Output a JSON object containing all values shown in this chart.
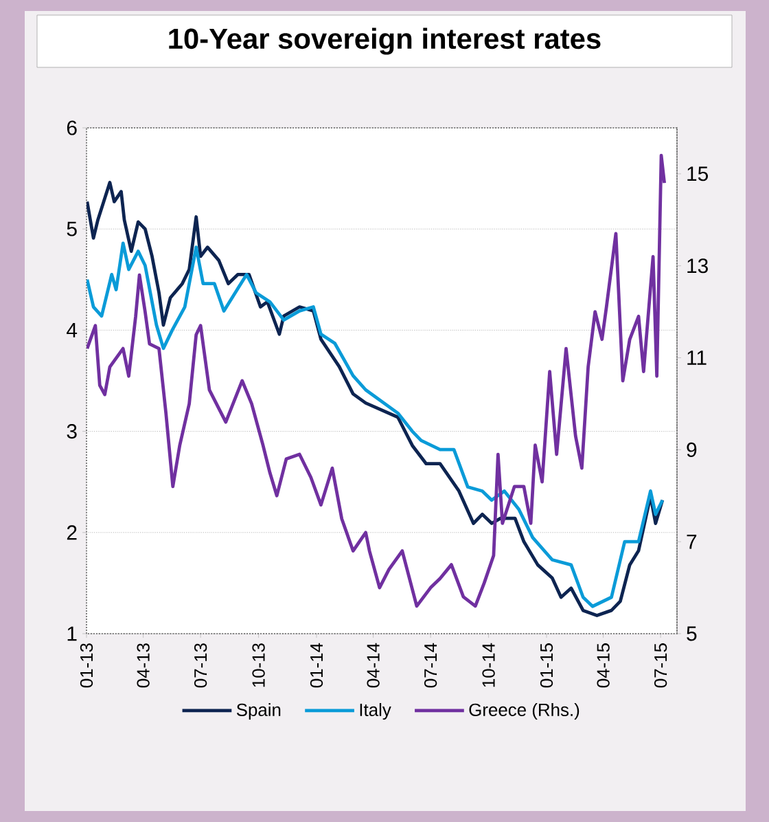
{
  "chart_data": {
    "type": "line",
    "title": "10-Year sovereign interest rates",
    "xlim": [
      "2013-01-01",
      "2015-07-27"
    ],
    "xticks": [
      {
        "value": "2013-01-01",
        "label": "01-13"
      },
      {
        "value": "2013-04-01",
        "label": "04-13"
      },
      {
        "value": "2013-07-01",
        "label": "07-13"
      },
      {
        "value": "2013-10-01",
        "label": "10-13"
      },
      {
        "value": "2014-01-01",
        "label": "01-14"
      },
      {
        "value": "2014-04-01",
        "label": "04-14"
      },
      {
        "value": "2014-07-01",
        "label": "07-14"
      },
      {
        "value": "2014-10-01",
        "label": "10-14"
      },
      {
        "value": "2015-01-01",
        "label": "01-15"
      },
      {
        "value": "2015-04-01",
        "label": "04-15"
      },
      {
        "value": "2015-07-01",
        "label": "07-15"
      }
    ],
    "ylim": [
      1,
      6
    ],
    "yticks": [
      1,
      2,
      3,
      4,
      5,
      6
    ],
    "y2lim": [
      5,
      16
    ],
    "y2ticks": [
      5,
      7,
      9,
      11,
      13,
      15
    ],
    "grid": "y",
    "legend": "bottom",
    "series": [
      {
        "name": "Spain",
        "color": "#0d2451",
        "x": [
          "2013-01-02",
          "2013-01-12",
          "2013-01-19",
          "2013-02-07",
          "2013-02-14",
          "2013-02-25",
          "2013-03-02",
          "2013-03-13",
          "2013-03-24",
          "2013-04-04",
          "2013-04-15",
          "2013-04-26",
          "2013-05-03",
          "2013-05-14",
          "2013-06-02",
          "2013-06-13",
          "2013-06-24",
          "2013-07-01",
          "2013-07-12",
          "2013-07-30",
          "2013-08-14",
          "2013-08-29",
          "2013-09-16",
          "2013-10-04",
          "2013-10-15",
          "2013-11-03",
          "2013-11-10",
          "2013-12-05",
          "2013-12-27",
          "2014-01-08",
          "2014-02-06",
          "2014-02-28",
          "2014-03-20",
          "2014-05-10",
          "2014-06-02",
          "2014-06-24",
          "2014-07-16",
          "2014-08-15",
          "2014-09-07",
          "2014-09-21",
          "2014-10-06",
          "2014-10-20",
          "2014-11-12",
          "2014-11-26",
          "2014-12-18",
          "2015-01-10",
          "2015-01-24",
          "2015-02-09",
          "2015-02-28",
          "2015-03-22",
          "2015-04-14",
          "2015-04-28",
          "2015-05-13",
          "2015-05-27",
          "2015-06-15",
          "2015-06-23",
          "2015-07-04"
        ],
        "values": [
          5.27,
          4.91,
          5.09,
          5.46,
          5.27,
          5.37,
          5.09,
          4.78,
          5.07,
          5.0,
          4.73,
          4.37,
          4.05,
          4.32,
          4.46,
          4.6,
          5.12,
          4.73,
          4.82,
          4.69,
          4.46,
          4.55,
          4.55,
          4.23,
          4.28,
          3.96,
          4.14,
          4.23,
          4.19,
          3.91,
          3.64,
          3.37,
          3.28,
          3.14,
          2.86,
          2.68,
          2.68,
          2.41,
          2.09,
          2.18,
          2.09,
          2.14,
          2.14,
          1.91,
          1.68,
          1.55,
          1.36,
          1.45,
          1.23,
          1.18,
          1.23,
          1.32,
          1.68,
          1.82,
          2.36,
          2.09,
          2.32
        ]
      },
      {
        "name": "Italy",
        "color": "#0a9bd8",
        "x": [
          "2013-01-02",
          "2013-01-12",
          "2013-01-25",
          "2013-02-10",
          "2013-02-17",
          "2013-02-28",
          "2013-03-09",
          "2013-03-24",
          "2013-04-04",
          "2013-04-22",
          "2013-05-03",
          "2013-05-17",
          "2013-06-06",
          "2013-06-24",
          "2013-07-05",
          "2013-07-23",
          "2013-08-07",
          "2013-08-29",
          "2013-09-12",
          "2013-09-27",
          "2013-10-19",
          "2013-11-10",
          "2013-12-05",
          "2013-12-27",
          "2014-01-08",
          "2014-01-30",
          "2014-02-28",
          "2014-03-20",
          "2014-05-10",
          "2014-06-02",
          "2014-06-16",
          "2014-07-16",
          "2014-08-07",
          "2014-08-29",
          "2014-09-21",
          "2014-10-06",
          "2014-10-26",
          "2014-11-18",
          "2014-12-10",
          "2015-01-10",
          "2015-02-09",
          "2015-02-28",
          "2015-03-15",
          "2015-04-14",
          "2015-05-05",
          "2015-05-27",
          "2015-06-15",
          "2015-06-23",
          "2015-07-04"
        ],
        "values": [
          4.5,
          4.23,
          4.14,
          4.55,
          4.4,
          4.86,
          4.6,
          4.78,
          4.64,
          4.05,
          3.82,
          4.0,
          4.23,
          4.82,
          4.46,
          4.46,
          4.19,
          4.41,
          4.55,
          4.37,
          4.28,
          4.1,
          4.19,
          4.23,
          3.96,
          3.87,
          3.55,
          3.41,
          3.18,
          3.0,
          2.91,
          2.82,
          2.82,
          2.45,
          2.41,
          2.32,
          2.41,
          2.23,
          1.95,
          1.73,
          1.68,
          1.36,
          1.27,
          1.36,
          1.91,
          1.91,
          2.41,
          2.18,
          2.32
        ]
      },
      {
        "name": "Greece (Rhs.)",
        "color": "#7030a0",
        "axis": "y2",
        "x": [
          "2013-01-02",
          "2013-01-15",
          "2013-01-22",
          "2013-01-30",
          "2013-02-07",
          "2013-02-28",
          "2013-03-09",
          "2013-03-20",
          "2013-03-26",
          "2013-04-04",
          "2013-04-11",
          "2013-04-26",
          "2013-05-07",
          "2013-05-18",
          "2013-05-29",
          "2013-06-13",
          "2013-06-24",
          "2013-07-01",
          "2013-07-15",
          "2013-08-10",
          "2013-09-05",
          "2013-09-20",
          "2013-10-08",
          "2013-10-19",
          "2013-10-30",
          "2013-11-14",
          "2013-12-05",
          "2013-12-23",
          "2014-01-08",
          "2014-01-26",
          "2014-02-10",
          "2014-02-28",
          "2014-03-20",
          "2014-03-26",
          "2014-04-11",
          "2014-04-26",
          "2014-05-17",
          "2014-06-09",
          "2014-07-01",
          "2014-07-16",
          "2014-08-03",
          "2014-08-22",
          "2014-09-10",
          "2014-09-24",
          "2014-10-09",
          "2014-10-16",
          "2014-10-23",
          "2014-11-11",
          "2014-11-26",
          "2014-12-07",
          "2014-12-14",
          "2014-12-25",
          "2015-01-06",
          "2015-01-17",
          "2015-02-01",
          "2015-02-16",
          "2015-02-26",
          "2015-03-08",
          "2015-03-19",
          "2015-03-30",
          "2015-04-06",
          "2015-04-21",
          "2015-05-02",
          "2015-05-13",
          "2015-05-27",
          "2015-06-04",
          "2015-06-19",
          "2015-06-25",
          "2015-07-02",
          "2015-07-07"
        ],
        "values": [
          11.2,
          11.7,
          10.4,
          10.2,
          10.8,
          11.2,
          10.6,
          11.9,
          12.8,
          12.0,
          11.3,
          11.2,
          9.8,
          8.2,
          9.1,
          10.0,
          11.5,
          11.7,
          10.3,
          9.6,
          10.5,
          10.0,
          9.1,
          8.5,
          8.0,
          8.8,
          8.9,
          8.4,
          7.8,
          8.6,
          7.5,
          6.8,
          7.2,
          6.8,
          6.0,
          6.4,
          6.8,
          5.6,
          6.0,
          6.2,
          6.5,
          5.8,
          5.6,
          6.1,
          6.7,
          8.9,
          7.4,
          8.2,
          8.2,
          7.4,
          9.1,
          8.3,
          10.7,
          8.9,
          11.2,
          9.3,
          8.6,
          10.8,
          12.0,
          11.4,
          12.1,
          13.7,
          10.5,
          11.4,
          11.9,
          10.7,
          13.2,
          10.6,
          15.4,
          14.8
        ]
      }
    ]
  }
}
